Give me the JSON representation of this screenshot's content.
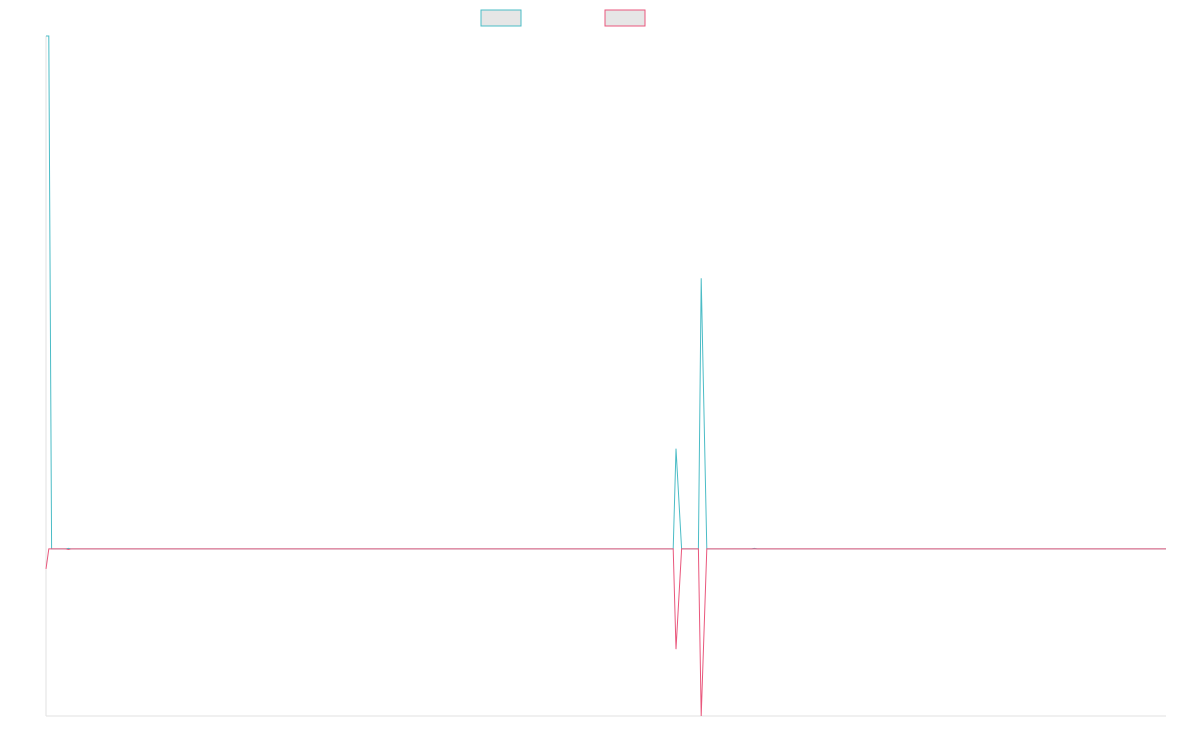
{
  "chart_data": {
    "type": "line",
    "title": "",
    "xlabel": "",
    "ylabel": "",
    "x": [
      0,
      1,
      2,
      3,
      4,
      5,
      6,
      7,
      8,
      9,
      10,
      11,
      12,
      13,
      14,
      15,
      16,
      17,
      18,
      19,
      20,
      21,
      22,
      23,
      24,
      25,
      26,
      27,
      28,
      29,
      30,
      31,
      32,
      33,
      34,
      35,
      36,
      37,
      38,
      39,
      40,
      41,
      42,
      43,
      44,
      45,
      46,
      47,
      48,
      49,
      50,
      51,
      52,
      53,
      54,
      55,
      56,
      57,
      58,
      59,
      60,
      61,
      62,
      63,
      64,
      65,
      66,
      67,
      68,
      69,
      70,
      71,
      72,
      73,
      74,
      75,
      76,
      77,
      78,
      79,
      80,
      81,
      82,
      83,
      84,
      85,
      86,
      87,
      88,
      89,
      90,
      91,
      92,
      93,
      94,
      95,
      96,
      97,
      98,
      99,
      100,
      101,
      102,
      103,
      104,
      105,
      106,
      107,
      108,
      109,
      110,
      111,
      112,
      113,
      114,
      115,
      116,
      117,
      118,
      119,
      120,
      121,
      122,
      123,
      124,
      125,
      126,
      127,
      128,
      129,
      130,
      131,
      132,
      133,
      134,
      135,
      136,
      137,
      138,
      139,
      140,
      141,
      142,
      143,
      144,
      145,
      146,
      147,
      148,
      149,
      150,
      151,
      152,
      153,
      154,
      155,
      156,
      157,
      158,
      159,
      160,
      161,
      162,
      163,
      164,
      165,
      166,
      167,
      168,
      169,
      170,
      171,
      172,
      173,
      174,
      175,
      176,
      177,
      178,
      179,
      180,
      181,
      182,
      183,
      184,
      185,
      186,
      187,
      188,
      189,
      190,
      191,
      192,
      193,
      194,
      195,
      196,
      197,
      198,
      199,
      200,
      201,
      202,
      203,
      204,
      205,
      206,
      207,
      208,
      209,
      210,
      211,
      212,
      213,
      214,
      215,
      216,
      217,
      218,
      219,
      220,
      221,
      222,
      223,
      224,
      225,
      226,
      227,
      228,
      229,
      230,
      231,
      232,
      233,
      234,
      235,
      236,
      237,
      238,
      239,
      240,
      241,
      242,
      243,
      244,
      245,
      246,
      247,
      248,
      249,
      250,
      251,
      252,
      253,
      254,
      255,
      256,
      257,
      258,
      259,
      260,
      261,
      262,
      263,
      264,
      265,
      266,
      267,
      268,
      269,
      270,
      271,
      272,
      273,
      274,
      275,
      276,
      277,
      278,
      279,
      280,
      281,
      282,
      283,
      284,
      285,
      286,
      287,
      288,
      289,
      290,
      291,
      292,
      293,
      294,
      295,
      296,
      297,
      298,
      299,
      300,
      301,
      302,
      303,
      304,
      305,
      306,
      307,
      308,
      309,
      310,
      311,
      312,
      313,
      314,
      315,
      316,
      317,
      318,
      319,
      320,
      321,
      322,
      323,
      324,
      325,
      326,
      327,
      328,
      329,
      330,
      331,
      332,
      333,
      334,
      335,
      336,
      337,
      338,
      339,
      340,
      341,
      342,
      343,
      344,
      345,
      346,
      347,
      348,
      349,
      350,
      351,
      352,
      353,
      354,
      355,
      356,
      357,
      358,
      359,
      360,
      361,
      362,
      363,
      364,
      365,
      366,
      367,
      368,
      369,
      370,
      371,
      372,
      373,
      374,
      375,
      376,
      377,
      378,
      379,
      380,
      381,
      382,
      383,
      384,
      385,
      386,
      387,
      388,
      389,
      390,
      391,
      392,
      393,
      394,
      395,
      396,
      397,
      398,
      399,
      400
    ],
    "xlim": [
      0,
      400
    ],
    "ylim": [
      -100,
      307
    ],
    "grid": false,
    "legend": "top-center",
    "series": [
      {
        "color": "#4bbcc6",
        "fill": "#e6e6e6",
        "points": [
          [
            0,
            307
          ],
          [
            1,
            307
          ],
          [
            2,
            0
          ],
          [
            7,
            0
          ],
          [
            8,
            0.3
          ],
          [
            9,
            0
          ],
          [
            223,
            0
          ],
          [
            224,
            0
          ],
          [
            225,
            60
          ],
          [
            227,
            0
          ],
          [
            232,
            0
          ],
          [
            233,
            0
          ],
          [
            234,
            162
          ],
          [
            236,
            0
          ],
          [
            252,
            0
          ],
          [
            253,
            0.3
          ],
          [
            254,
            0
          ],
          [
            400,
            0
          ]
        ]
      },
      {
        "color": "#e9577c",
        "fill": "#e6e6e6",
        "points": [
          [
            0,
            -12
          ],
          [
            1,
            0
          ],
          [
            2,
            0
          ],
          [
            7,
            0
          ],
          [
            8,
            -0.3
          ],
          [
            9,
            0
          ],
          [
            223,
            0
          ],
          [
            224,
            0
          ],
          [
            225,
            -60
          ],
          [
            227,
            0
          ],
          [
            232,
            0
          ],
          [
            233,
            0
          ],
          [
            234,
            -100
          ],
          [
            236,
            0
          ],
          [
            252,
            0
          ],
          [
            253,
            0
          ],
          [
            254,
            0
          ],
          [
            400,
            0
          ]
        ]
      }
    ]
  }
}
